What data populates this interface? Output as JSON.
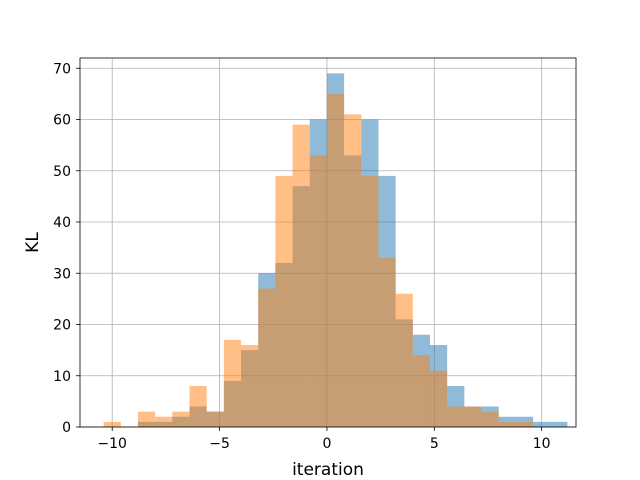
{
  "chart_data": {
    "type": "bar",
    "subtype": "overlapping-histogram",
    "title": "",
    "xlabel": "iteration",
    "ylabel": "KL",
    "xlim": [
      -11.5,
      11.6
    ],
    "ylim": [
      0,
      72
    ],
    "xticks": [
      -10,
      -5,
      0,
      5,
      10
    ],
    "xtick_labels": [
      "−10",
      "−5",
      "0",
      "5",
      "10"
    ],
    "yticks": [
      0,
      10,
      20,
      30,
      40,
      50,
      60,
      70
    ],
    "ytick_labels": [
      "0",
      "10",
      "20",
      "30",
      "40",
      "50",
      "60",
      "70"
    ],
    "grid": true,
    "legend": "none",
    "series": [
      {
        "color": "#1f77b4",
        "alpha": 0.5,
        "bins": [
          [
            -8.8,
            -8.0,
            1
          ],
          [
            -8.0,
            -7.2,
            1
          ],
          [
            -7.2,
            -6.4,
            2
          ],
          [
            -6.4,
            -5.6,
            4
          ],
          [
            -5.6,
            -4.8,
            3
          ],
          [
            -4.8,
            -4.0,
            9
          ],
          [
            -4.0,
            -3.2,
            15
          ],
          [
            -3.2,
            -2.4,
            30
          ],
          [
            -2.4,
            -1.6,
            32
          ],
          [
            -1.6,
            -0.8,
            47
          ],
          [
            -0.8,
            0.0,
            60
          ],
          [
            0.0,
            0.8,
            69
          ],
          [
            0.8,
            1.6,
            53
          ],
          [
            1.6,
            2.4,
            60
          ],
          [
            2.4,
            3.2,
            49
          ],
          [
            3.2,
            4.0,
            21
          ],
          [
            4.0,
            4.8,
            18
          ],
          [
            4.8,
            5.6,
            16
          ],
          [
            5.6,
            6.4,
            8
          ],
          [
            6.4,
            7.2,
            4
          ],
          [
            7.2,
            8.0,
            4
          ],
          [
            8.0,
            8.8,
            2
          ],
          [
            8.8,
            9.6,
            2
          ],
          [
            9.6,
            10.4,
            1
          ],
          [
            10.4,
            11.2,
            1
          ]
        ]
      },
      {
        "color": "#ff7f0e",
        "alpha": 0.5,
        "bins": [
          [
            -10.4,
            -9.6,
            1
          ],
          [
            -9.6,
            -8.8,
            0
          ],
          [
            -8.8,
            -8.0,
            3
          ],
          [
            -8.0,
            -7.2,
            2
          ],
          [
            -7.2,
            -6.4,
            3
          ],
          [
            -6.4,
            -5.6,
            8
          ],
          [
            -5.6,
            -4.8,
            3
          ],
          [
            -4.8,
            -4.0,
            17
          ],
          [
            -4.0,
            -3.2,
            16
          ],
          [
            -3.2,
            -2.4,
            27
          ],
          [
            -2.4,
            -1.6,
            49
          ],
          [
            -1.6,
            -0.8,
            59
          ],
          [
            -0.8,
            0.0,
            53
          ],
          [
            0.0,
            0.8,
            65
          ],
          [
            0.8,
            1.6,
            61
          ],
          [
            1.6,
            2.4,
            49
          ],
          [
            2.4,
            3.2,
            33
          ],
          [
            3.2,
            4.0,
            26
          ],
          [
            4.0,
            4.8,
            14
          ],
          [
            4.8,
            5.6,
            11
          ],
          [
            5.6,
            6.4,
            4
          ],
          [
            6.4,
            7.2,
            4
          ],
          [
            7.2,
            8.0,
            3
          ],
          [
            8.0,
            8.8,
            1
          ],
          [
            8.8,
            9.6,
            1
          ]
        ]
      }
    ]
  }
}
